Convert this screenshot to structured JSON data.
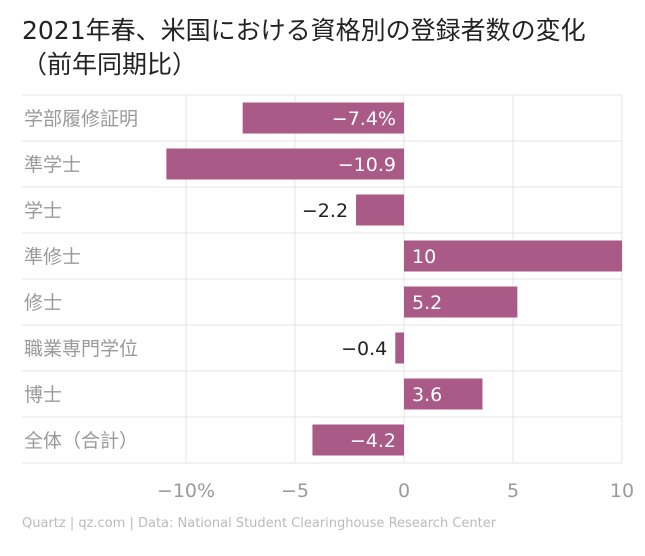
{
  "title": "2021年春、米国における資格別の登録者数の変化（前年同期比）",
  "source": "Quartz | qz.com | Data: National Student Clearinghouse Research Center",
  "colors": {
    "bar": "#a95a86",
    "grid": "#e6e6e6",
    "label_dark": "#222222",
    "label_light": "#ffffff",
    "category": "#9a9a9a"
  },
  "chart_data": {
    "type": "bar",
    "orientation": "horizontal",
    "categories": [
      "学部履修証明",
      "準学士",
      "学士",
      "準修士",
      "修士",
      "職業専門学位",
      "博士",
      "全体（合計）"
    ],
    "values": [
      -7.4,
      -10.9,
      -2.2,
      10,
      5.2,
      -0.4,
      3.6,
      -4.2
    ],
    "value_labels": [
      "−7.4%",
      "−10.9",
      "−2.2",
      "10",
      "5.2",
      "−0.4",
      "3.6",
      "−4.2"
    ],
    "xlim": [
      -12,
      10
    ],
    "xticks": [
      -10,
      -5,
      0,
      5,
      10
    ],
    "xtick_labels": [
      "−10%",
      "−5",
      "0",
      "5",
      "10"
    ],
    "grid": true
  }
}
